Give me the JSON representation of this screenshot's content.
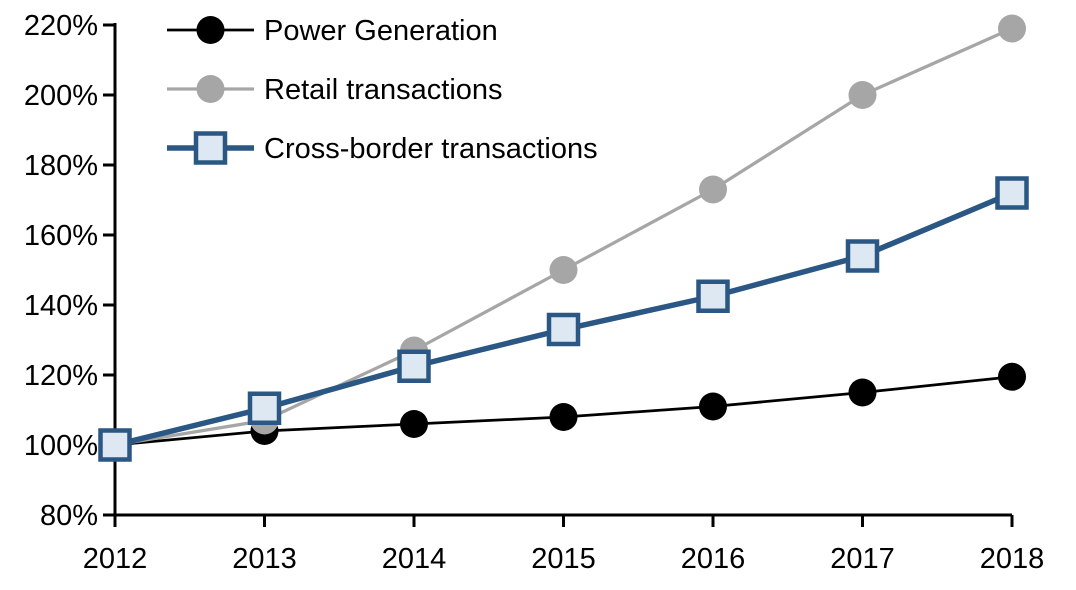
{
  "chart_data": {
    "type": "line",
    "title": "",
    "xlabel": "",
    "ylabel": "",
    "x": [
      2012,
      2013,
      2014,
      2015,
      2016,
      2017,
      2018
    ],
    "series": [
      {
        "name": "Power Generation",
        "values": [
          100,
          104,
          106,
          108,
          111,
          115,
          119.5
        ],
        "color": "#000000",
        "marker": "circle",
        "marker_fill": "#000000",
        "line_width": 2.75
      },
      {
        "name": "Retail transactions",
        "values": [
          100,
          107,
          127,
          150,
          173,
          200,
          219
        ],
        "color": "#a6a6a6",
        "marker": "circle",
        "marker_fill": "#a6a6a6",
        "line_width": 3.25
      },
      {
        "name": "Cross-border transactions",
        "values": [
          100,
          110.5,
          122.5,
          133,
          142.5,
          154,
          172
        ],
        "color": "#2a5783",
        "marker": "square",
        "marker_fill": "#dee8f3",
        "line_width": 5.5
      }
    ],
    "ylim": [
      80,
      220
    ],
    "ytick_step": 20,
    "grid": false,
    "legend_position": "top-left"
  },
  "axes": {
    "y_tick_labels": [
      "220%",
      "200%",
      "180%",
      "160%",
      "140%",
      "120%",
      "100%",
      "80%"
    ],
    "y_tick_values": [
      220,
      200,
      180,
      160,
      140,
      120,
      100,
      80
    ],
    "x_tick_labels": [
      "2012",
      "2013",
      "2014",
      "2015",
      "2016",
      "2017",
      "2018"
    ],
    "axis_color": "#000000"
  },
  "legend": {
    "items": [
      "Power Generation",
      "Retail transactions",
      "Cross-border transactions"
    ]
  }
}
